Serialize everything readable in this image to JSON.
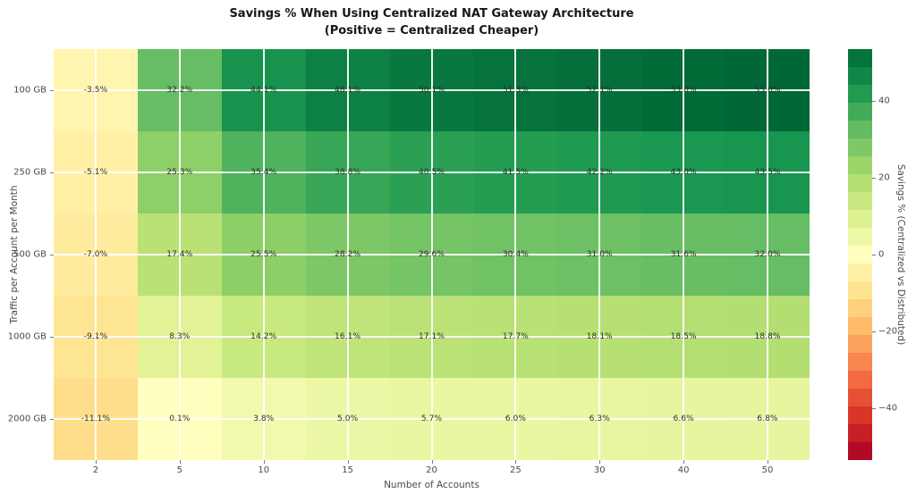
{
  "title": {
    "line1": "Savings % When Using Centralized NAT Gateway Architecture",
    "line2": "(Positive = Centralized Cheaper)"
  },
  "chart_data": {
    "type": "heatmap",
    "title": "Savings % When Using Centralized NAT Gateway Architecture (Positive = Centralized Cheaper)",
    "xlabel": "Number of Accounts",
    "ylabel": "Traffic per Account per Month",
    "x_categories": [
      "2",
      "5",
      "10",
      "15",
      "20",
      "25",
      "30",
      "40",
      "50"
    ],
    "y_categories": [
      "100 GB",
      "250 GB",
      "500 GB",
      "1000 GB",
      "2000 GB"
    ],
    "values": [
      [
        -3.5,
        32.2,
        44.1,
        48.1,
        50.1,
        51.3,
        52.1,
        53.0,
        53.6
      ],
      [
        -5.1,
        25.3,
        35.4,
        38.8,
        40.5,
        41.5,
        42.2,
        43.0,
        43.5
      ],
      [
        -7.0,
        17.4,
        25.5,
        28.2,
        29.6,
        30.4,
        31.0,
        31.6,
        32.0
      ],
      [
        -9.1,
        8.3,
        14.2,
        16.1,
        17.1,
        17.7,
        18.1,
        18.5,
        18.8
      ],
      [
        -11.1,
        0.1,
        3.8,
        5.0,
        5.7,
        6.0,
        6.3,
        6.6,
        6.8
      ]
    ],
    "cell_labels": [
      [
        "-3.5%",
        "32.2%",
        "44.1%",
        "48.1%",
        "50.1%",
        "51.3%",
        "52.1%",
        "53.0%",
        "53.6%"
      ],
      [
        "-5.1%",
        "25.3%",
        "35.4%",
        "38.8%",
        "40.5%",
        "41.5%",
        "42.2%",
        "43.0%",
        "43.5%"
      ],
      [
        "-7.0%",
        "17.4%",
        "25.5%",
        "28.2%",
        "29.6%",
        "30.4%",
        "31.0%",
        "31.6%",
        "32.0%"
      ],
      [
        "-9.1%",
        "8.3%",
        "14.2%",
        "16.1%",
        "17.1%",
        "17.7%",
        "18.1%",
        "18.5%",
        "18.8%"
      ],
      [
        "-11.1%",
        "0.1%",
        "3.8%",
        "5.0%",
        "5.7%",
        "6.0%",
        "6.3%",
        "6.6%",
        "6.8%"
      ]
    ],
    "colorbar_label": "Savings % (Centralized vs Distributed)",
    "colorbar_ticks": [
      40,
      20,
      0,
      -20,
      -40
    ],
    "color_domain": [
      -53.6,
      53.6
    ],
    "grid": true,
    "legend_position": "right-colorbar"
  },
  "colors": {
    "background": "#ffffff",
    "gridline": "#ffffff",
    "title_text": "#171717",
    "tick_text": "#4a4a4a",
    "cell_text": "#2e2e2e",
    "cmap_name": "RdYlGn",
    "cmap_stops": [
      {
        "p": 0.0,
        "c": "#a50026"
      },
      {
        "p": 0.1,
        "c": "#d73027"
      },
      {
        "p": 0.2,
        "c": "#f46d43"
      },
      {
        "p": 0.3,
        "c": "#fdae61"
      },
      {
        "p": 0.4,
        "c": "#fee08b"
      },
      {
        "p": 0.5,
        "c": "#ffffbf"
      },
      {
        "p": 0.6,
        "c": "#d9ef8b"
      },
      {
        "p": 0.7,
        "c": "#a6d96a"
      },
      {
        "p": 0.8,
        "c": "#66bd63"
      },
      {
        "p": 0.9,
        "c": "#1a9850"
      },
      {
        "p": 1.0,
        "c": "#006837"
      }
    ]
  }
}
